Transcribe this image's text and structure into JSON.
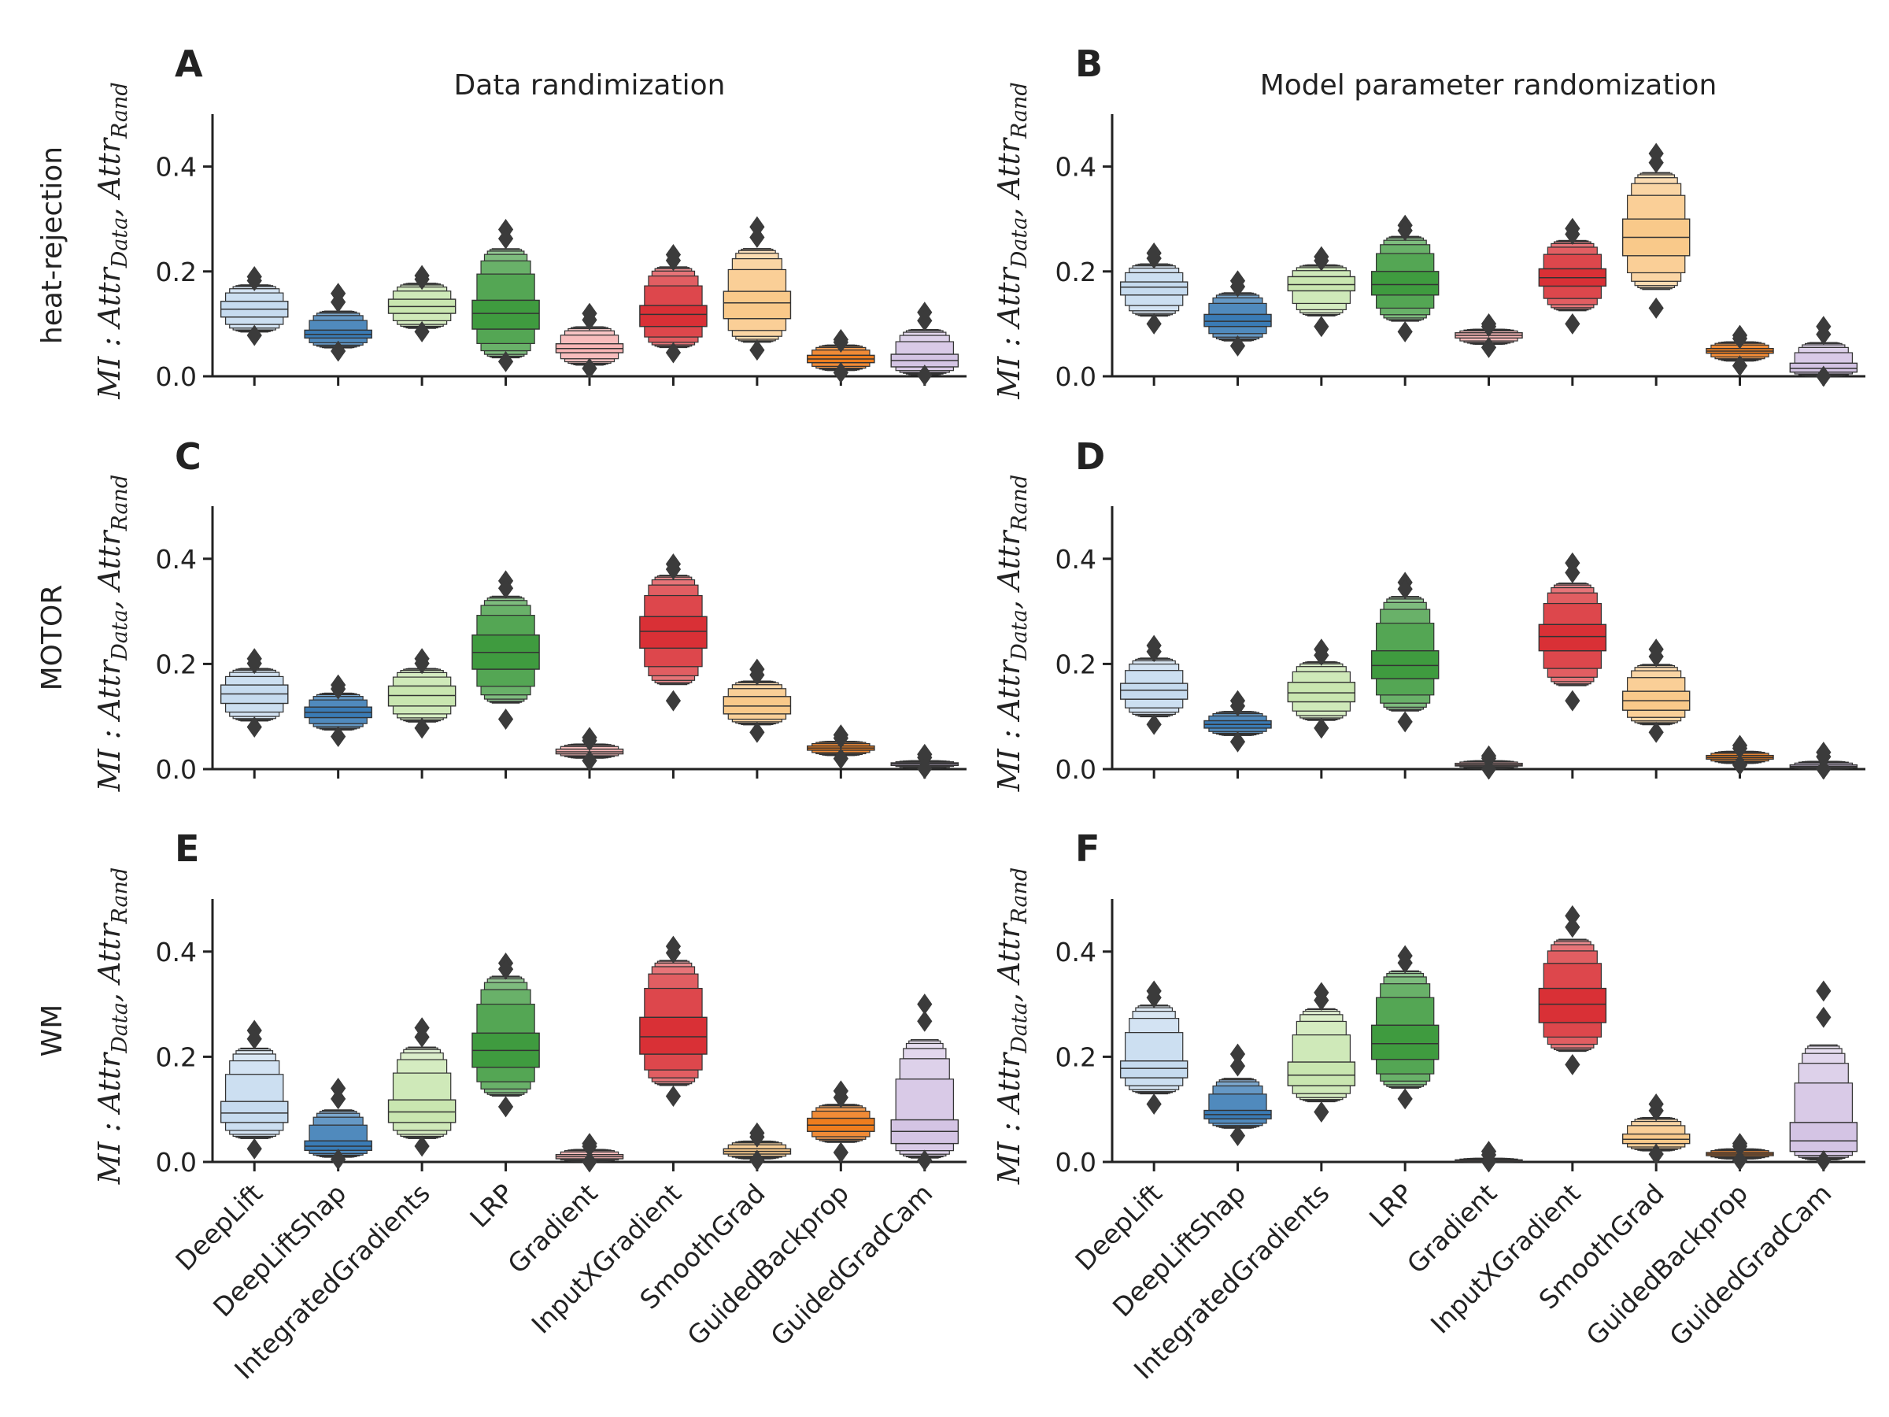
{
  "col_titles": [
    "Data randimization",
    "Model parameter randomization"
  ],
  "row_labels": [
    "heat-rejection",
    "MOTOR",
    "WM"
  ],
  "ylabel": {
    "main": "MI : Attr",
    "sub1": "Data",
    "sep": ", Attr",
    "sub2": "Rand"
  },
  "method_colors": [
    "#c6dbef",
    "#3a7bb5",
    "#c9e6b0",
    "#3f9b3f",
    "#f7b5b5",
    "#d93036",
    "#f9c98a",
    "#ee7d1e",
    "#d4c4e4"
  ],
  "chart_data": [
    {
      "type": "boxen",
      "panel": "A",
      "row": "heat-rejection",
      "col": "Data randimization",
      "categories": [
        "DeepLift",
        "DeepLiftShap",
        "IntegratedGradients",
        "LRP",
        "Gradient",
        "InputXGradient",
        "SmoothGrad",
        "GuidedBackprop",
        "GuidedGradCam"
      ],
      "ylim": [
        0,
        0.5
      ],
      "yticks": [
        "0.0",
        "0.2",
        "0.4"
      ],
      "boxes": [
        {
          "med": 0.128,
          "q1": 0.113,
          "q3": 0.143,
          "min": 0.085,
          "max": 0.175,
          "outmin": 0.078,
          "outmax": 0.19
        },
        {
          "med": 0.08,
          "q1": 0.073,
          "q3": 0.088,
          "min": 0.055,
          "max": 0.125,
          "outmin": 0.048,
          "outmax": 0.158
        },
        {
          "med": 0.133,
          "q1": 0.12,
          "q3": 0.147,
          "min": 0.092,
          "max": 0.178,
          "outmin": 0.085,
          "outmax": 0.192
        },
        {
          "med": 0.12,
          "q1": 0.09,
          "q3": 0.145,
          "min": 0.035,
          "max": 0.245,
          "outmin": 0.028,
          "outmax": 0.28
        },
        {
          "med": 0.053,
          "q1": 0.045,
          "q3": 0.062,
          "min": 0.022,
          "max": 0.095,
          "outmin": 0.015,
          "outmax": 0.12
        },
        {
          "med": 0.118,
          "q1": 0.095,
          "q3": 0.135,
          "min": 0.055,
          "max": 0.21,
          "outmin": 0.045,
          "outmax": 0.232
        },
        {
          "med": 0.14,
          "q1": 0.11,
          "q3": 0.162,
          "min": 0.065,
          "max": 0.245,
          "outmin": 0.05,
          "outmax": 0.285
        },
        {
          "med": 0.033,
          "q1": 0.026,
          "q3": 0.04,
          "min": 0.012,
          "max": 0.06,
          "outmin": 0.007,
          "outmax": 0.07
        },
        {
          "med": 0.03,
          "q1": 0.018,
          "q3": 0.042,
          "min": 0.004,
          "max": 0.09,
          "outmin": 0.002,
          "outmax": 0.122
        }
      ]
    },
    {
      "type": "boxen",
      "panel": "B",
      "row": "heat-rejection",
      "col": "Model parameter randomization",
      "categories": [
        "DeepLift",
        "DeepLiftShap",
        "IntegratedGradients",
        "LRP",
        "Gradient",
        "InputXGradient",
        "SmoothGrad",
        "GuidedBackprop",
        "GuidedGradCam"
      ],
      "ylim": [
        0,
        0.5
      ],
      "yticks": [
        "0.0",
        "0.2",
        "0.4"
      ],
      "boxes": [
        {
          "med": 0.17,
          "q1": 0.155,
          "q3": 0.18,
          "min": 0.115,
          "max": 0.215,
          "outmin": 0.1,
          "outmax": 0.235
        },
        {
          "med": 0.105,
          "q1": 0.095,
          "q3": 0.118,
          "min": 0.068,
          "max": 0.16,
          "outmin": 0.058,
          "outmax": 0.182
        },
        {
          "med": 0.175,
          "q1": 0.163,
          "q3": 0.19,
          "min": 0.115,
          "max": 0.213,
          "outmin": 0.095,
          "outmax": 0.228
        },
        {
          "med": 0.175,
          "q1": 0.155,
          "q3": 0.2,
          "min": 0.105,
          "max": 0.268,
          "outmin": 0.085,
          "outmax": 0.288
        },
        {
          "med": 0.078,
          "q1": 0.073,
          "q3": 0.083,
          "min": 0.062,
          "max": 0.09,
          "outmin": 0.055,
          "outmax": 0.1
        },
        {
          "med": 0.188,
          "q1": 0.172,
          "q3": 0.205,
          "min": 0.125,
          "max": 0.26,
          "outmin": 0.1,
          "outmax": 0.282
        },
        {
          "med": 0.265,
          "q1": 0.23,
          "q3": 0.3,
          "min": 0.165,
          "max": 0.39,
          "outmin": 0.13,
          "outmax": 0.425
        },
        {
          "med": 0.048,
          "q1": 0.044,
          "q3": 0.053,
          "min": 0.03,
          "max": 0.066,
          "outmin": 0.02,
          "outmax": 0.078
        },
        {
          "med": 0.015,
          "q1": 0.008,
          "q3": 0.025,
          "min": 0.001,
          "max": 0.065,
          "outmin": 0.0,
          "outmax": 0.095
        }
      ]
    },
    {
      "type": "boxen",
      "panel": "C",
      "row": "MOTOR",
      "col": "Data randimization",
      "categories": [
        "DeepLift",
        "DeepLiftShap",
        "IntegratedGradients",
        "LRP",
        "Gradient",
        "InputXGradient",
        "SmoothGrad",
        "GuidedBackprop",
        "GuidedGradCam"
      ],
      "ylim": [
        0,
        0.5
      ],
      "yticks": [
        "0.0",
        "0.2",
        "0.4"
      ],
      "boxes": [
        {
          "med": 0.143,
          "q1": 0.125,
          "q3": 0.16,
          "min": 0.092,
          "max": 0.192,
          "outmin": 0.08,
          "outmax": 0.21
        },
        {
          "med": 0.108,
          "q1": 0.098,
          "q3": 0.118,
          "min": 0.075,
          "max": 0.145,
          "outmin": 0.062,
          "outmax": 0.16
        },
        {
          "med": 0.14,
          "q1": 0.12,
          "q3": 0.158,
          "min": 0.09,
          "max": 0.192,
          "outmin": 0.078,
          "outmax": 0.21
        },
        {
          "med": 0.222,
          "q1": 0.19,
          "q3": 0.255,
          "min": 0.125,
          "max": 0.33,
          "outmin": 0.095,
          "outmax": 0.358
        },
        {
          "med": 0.033,
          "q1": 0.029,
          "q3": 0.038,
          "min": 0.022,
          "max": 0.048,
          "outmin": 0.016,
          "outmax": 0.06
        },
        {
          "med": 0.262,
          "q1": 0.23,
          "q3": 0.29,
          "min": 0.16,
          "max": 0.37,
          "outmin": 0.13,
          "outmax": 0.39
        },
        {
          "med": 0.12,
          "q1": 0.105,
          "q3": 0.138,
          "min": 0.085,
          "max": 0.168,
          "outmin": 0.07,
          "outmax": 0.19
        },
        {
          "med": 0.04,
          "q1": 0.036,
          "q3": 0.044,
          "min": 0.027,
          "max": 0.053,
          "outmin": 0.02,
          "outmax": 0.065
        },
        {
          "med": 0.01,
          "q1": 0.007,
          "q3": 0.012,
          "min": 0.003,
          "max": 0.016,
          "outmin": 0.001,
          "outmax": 0.028
        }
      ]
    },
    {
      "type": "boxen",
      "panel": "D",
      "row": "MOTOR",
      "col": "Model parameter randomization",
      "categories": [
        "DeepLift",
        "DeepLiftShap",
        "IntegratedGradients",
        "LRP",
        "Gradient",
        "InputXGradient",
        "SmoothGrad",
        "GuidedBackprop",
        "GuidedGradCam"
      ],
      "ylim": [
        0,
        0.5
      ],
      "yticks": [
        "0.0",
        "0.2",
        "0.4"
      ],
      "boxes": [
        {
          "med": 0.15,
          "q1": 0.133,
          "q3": 0.163,
          "min": 0.1,
          "max": 0.212,
          "outmin": 0.085,
          "outmax": 0.235
        },
        {
          "med": 0.085,
          "q1": 0.078,
          "q3": 0.092,
          "min": 0.065,
          "max": 0.11,
          "outmin": 0.052,
          "outmax": 0.13
        },
        {
          "med": 0.145,
          "q1": 0.128,
          "q3": 0.165,
          "min": 0.093,
          "max": 0.205,
          "outmin": 0.078,
          "outmax": 0.228
        },
        {
          "med": 0.197,
          "q1": 0.172,
          "q3": 0.225,
          "min": 0.11,
          "max": 0.33,
          "outmin": 0.09,
          "outmax": 0.355
        },
        {
          "med": 0.008,
          "q1": 0.006,
          "q3": 0.011,
          "min": 0.002,
          "max": 0.016,
          "outmin": 0.0,
          "outmax": 0.025
        },
        {
          "med": 0.252,
          "q1": 0.225,
          "q3": 0.275,
          "min": 0.158,
          "max": 0.355,
          "outmin": 0.13,
          "outmax": 0.392
        },
        {
          "med": 0.13,
          "q1": 0.112,
          "q3": 0.148,
          "min": 0.085,
          "max": 0.2,
          "outmin": 0.07,
          "outmax": 0.228
        },
        {
          "med": 0.022,
          "q1": 0.019,
          "q3": 0.026,
          "min": 0.012,
          "max": 0.034,
          "outmin": 0.008,
          "outmax": 0.045
        },
        {
          "med": 0.005,
          "q1": 0.003,
          "q3": 0.008,
          "min": 0.001,
          "max": 0.015,
          "outmin": 0.0,
          "outmax": 0.032
        }
      ]
    },
    {
      "type": "boxen",
      "panel": "E",
      "row": "WM",
      "col": "Data randimization",
      "categories": [
        "DeepLift",
        "DeepLiftShap",
        "IntegratedGradients",
        "LRP",
        "Gradient",
        "InputXGradient",
        "SmoothGrad",
        "GuidedBackprop",
        "GuidedGradCam"
      ],
      "ylim": [
        0,
        0.5
      ],
      "yticks": [
        "0.0",
        "0.2",
        "0.4"
      ],
      "boxes": [
        {
          "med": 0.093,
          "q1": 0.075,
          "q3": 0.115,
          "min": 0.045,
          "max": 0.218,
          "outmin": 0.025,
          "outmax": 0.25
        },
        {
          "med": 0.03,
          "q1": 0.022,
          "q3": 0.04,
          "min": 0.01,
          "max": 0.1,
          "outmin": 0.005,
          "outmax": 0.14
        },
        {
          "med": 0.095,
          "q1": 0.075,
          "q3": 0.118,
          "min": 0.045,
          "max": 0.22,
          "outmin": 0.03,
          "outmax": 0.255
        },
        {
          "med": 0.212,
          "q1": 0.18,
          "q3": 0.245,
          "min": 0.125,
          "max": 0.355,
          "outmin": 0.105,
          "outmax": 0.378
        },
        {
          "med": 0.01,
          "q1": 0.006,
          "q3": 0.014,
          "min": 0.002,
          "max": 0.024,
          "outmin": 0.0,
          "outmax": 0.035
        },
        {
          "med": 0.238,
          "q1": 0.205,
          "q3": 0.275,
          "min": 0.145,
          "max": 0.385,
          "outmin": 0.125,
          "outmax": 0.41
        },
        {
          "med": 0.02,
          "q1": 0.015,
          "q3": 0.025,
          "min": 0.007,
          "max": 0.04,
          "outmin": 0.003,
          "outmax": 0.055
        },
        {
          "med": 0.07,
          "q1": 0.058,
          "q3": 0.083,
          "min": 0.038,
          "max": 0.11,
          "outmin": 0.018,
          "outmax": 0.135
        },
        {
          "med": 0.058,
          "q1": 0.035,
          "q3": 0.08,
          "min": 0.008,
          "max": 0.235,
          "outmin": 0.003,
          "outmax": 0.3
        }
      ]
    },
    {
      "type": "boxen",
      "panel": "F",
      "row": "WM",
      "col": "Model parameter randomization",
      "categories": [
        "DeepLift",
        "DeepLiftShap",
        "IntegratedGradients",
        "LRP",
        "Gradient",
        "InputXGradient",
        "SmoothGrad",
        "GuidedBackprop",
        "GuidedGradCam"
      ],
      "ylim": [
        0,
        0.5
      ],
      "yticks": [
        "0.0",
        "0.2",
        "0.4"
      ],
      "boxes": [
        {
          "med": 0.178,
          "q1": 0.16,
          "q3": 0.192,
          "min": 0.13,
          "max": 0.3,
          "outmin": 0.11,
          "outmax": 0.325
        },
        {
          "med": 0.09,
          "q1": 0.082,
          "q3": 0.098,
          "min": 0.065,
          "max": 0.16,
          "outmin": 0.05,
          "outmax": 0.205
        },
        {
          "med": 0.165,
          "q1": 0.145,
          "q3": 0.19,
          "min": 0.115,
          "max": 0.293,
          "outmin": 0.095,
          "outmax": 0.322
        },
        {
          "med": 0.225,
          "q1": 0.195,
          "q3": 0.26,
          "min": 0.14,
          "max": 0.365,
          "outmin": 0.12,
          "outmax": 0.392
        },
        {
          "med": 0.003,
          "q1": 0.002,
          "q3": 0.004,
          "min": 0.001,
          "max": 0.007,
          "outmin": 0.0,
          "outmax": 0.02
        },
        {
          "med": 0.3,
          "q1": 0.265,
          "q3": 0.33,
          "min": 0.21,
          "max": 0.425,
          "outmin": 0.185,
          "outmax": 0.468
        },
        {
          "med": 0.043,
          "q1": 0.035,
          "q3": 0.053,
          "min": 0.022,
          "max": 0.085,
          "outmin": 0.015,
          "outmax": 0.11
        },
        {
          "med": 0.015,
          "q1": 0.012,
          "q3": 0.018,
          "min": 0.007,
          "max": 0.025,
          "outmin": 0.003,
          "outmax": 0.035
        },
        {
          "med": 0.04,
          "q1": 0.02,
          "q3": 0.075,
          "min": 0.005,
          "max": 0.225,
          "outmin": 0.002,
          "outmax": 0.325
        }
      ]
    }
  ]
}
